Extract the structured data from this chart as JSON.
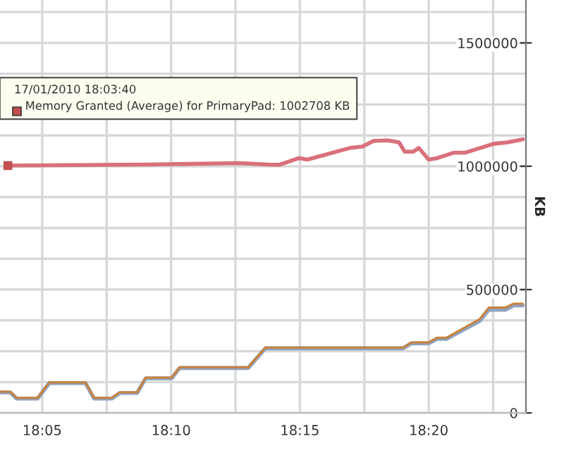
{
  "chart_data": {
    "type": "line",
    "ylabel": "KB",
    "xlim": [
      18.056,
      18.3962
    ],
    "xticks": [
      {
        "value": 18.0833,
        "label": "18:05"
      },
      {
        "value": 18.125,
        "label": null
      },
      {
        "value": 18.1667,
        "label": "18:10"
      },
      {
        "value": 18.2083,
        "label": null
      },
      {
        "value": 18.25,
        "label": "18:15"
      },
      {
        "value": 18.2917,
        "label": null
      },
      {
        "value": 18.3333,
        "label": "18:20"
      },
      {
        "value": 18.375,
        "label": null
      }
    ],
    "ylim": [
      0,
      1674000
    ],
    "yticks": [
      0,
      {
        "value": 125000,
        "label": null
      },
      {
        "value": 250000,
        "label": null
      },
      {
        "value": 375000,
        "label": null
      },
      500000,
      {
        "value": 625000,
        "label": null
      },
      {
        "value": 750000,
        "label": null
      },
      {
        "value": 875000,
        "label": null
      },
      1000000,
      {
        "value": 1125000,
        "label": null
      },
      {
        "value": 1250000,
        "label": null
      },
      {
        "value": 1375000,
        "label": null
      },
      1500000,
      {
        "value": 1625000,
        "label": null
      }
    ],
    "grid": true,
    "legend": false,
    "marker": "none",
    "line_style": "solid",
    "series": [
      {
        "color": "#d9707c",
        "x": [
          18.0611,
          18.1535,
          18.211,
          18.2293,
          18.2367,
          18.2494,
          18.2549,
          18.2822,
          18.2904,
          18.2977,
          18.3068,
          18.3141,
          18.3178,
          18.3232,
          18.3269,
          18.3333,
          18.3388,
          18.3497,
          18.357,
          18.3753,
          18.3844,
          18.3943
        ],
        "values": [
          1003000,
          1007000,
          1013000,
          1007000,
          1006000,
          1033000,
          1027000,
          1074000,
          1080000,
          1103000,
          1105000,
          1097000,
          1059000,
          1059000,
          1074000,
          1027000,
          1033000,
          1055000,
          1055000,
          1091000,
          1097000,
          1109000
        ]
      },
      {
        "color": "#8fa3c0",
        "x": [
          18.056,
          18.0627,
          18.0667,
          18.0772,
          18.0803,
          18.0879,
          18.1113,
          18.1168,
          18.1283,
          18.1335,
          18.1447,
          18.1502,
          18.167,
          18.1722,
          18.2165,
          18.2277,
          18.3168,
          18.322,
          18.3333,
          18.3388,
          18.3448,
          18.3662,
          18.3722,
          18.3828,
          18.3883,
          18.3941
        ],
        "values": [
          83000,
          83000,
          58000,
          58000,
          58000,
          121000,
          121000,
          58000,
          58000,
          81000,
          81000,
          140000,
          140000,
          182000,
          182000,
          262000,
          262000,
          282000,
          282000,
          300000,
          300000,
          372000,
          418000,
          418000,
          436000,
          436000
        ]
      },
      {
        "color": "#c8823c",
        "x": [
          18.056,
          18.0627,
          18.0667,
          18.0772,
          18.0803,
          18.0879,
          18.1113,
          18.1168,
          18.1283,
          18.1335,
          18.1447,
          18.1502,
          18.167,
          18.1722,
          18.2165,
          18.2277,
          18.3168,
          18.322,
          18.3333,
          18.3388,
          18.3448,
          18.3662,
          18.3722,
          18.3828,
          18.3883,
          18.3941
        ],
        "values": [
          86000,
          86000,
          61000,
          61000,
          61000,
          124000,
          124000,
          61000,
          61000,
          84000,
          84000,
          143000,
          143000,
          185000,
          185000,
          265000,
          265000,
          286000,
          286000,
          305000,
          305000,
          380000,
          427000,
          427000,
          443000,
          443000
        ]
      }
    ],
    "annotations": [
      "17/01/2010 18:03:40\nMemory Granted (Average) for PrimaryPad: 1002708 KB"
    ]
  }
}
